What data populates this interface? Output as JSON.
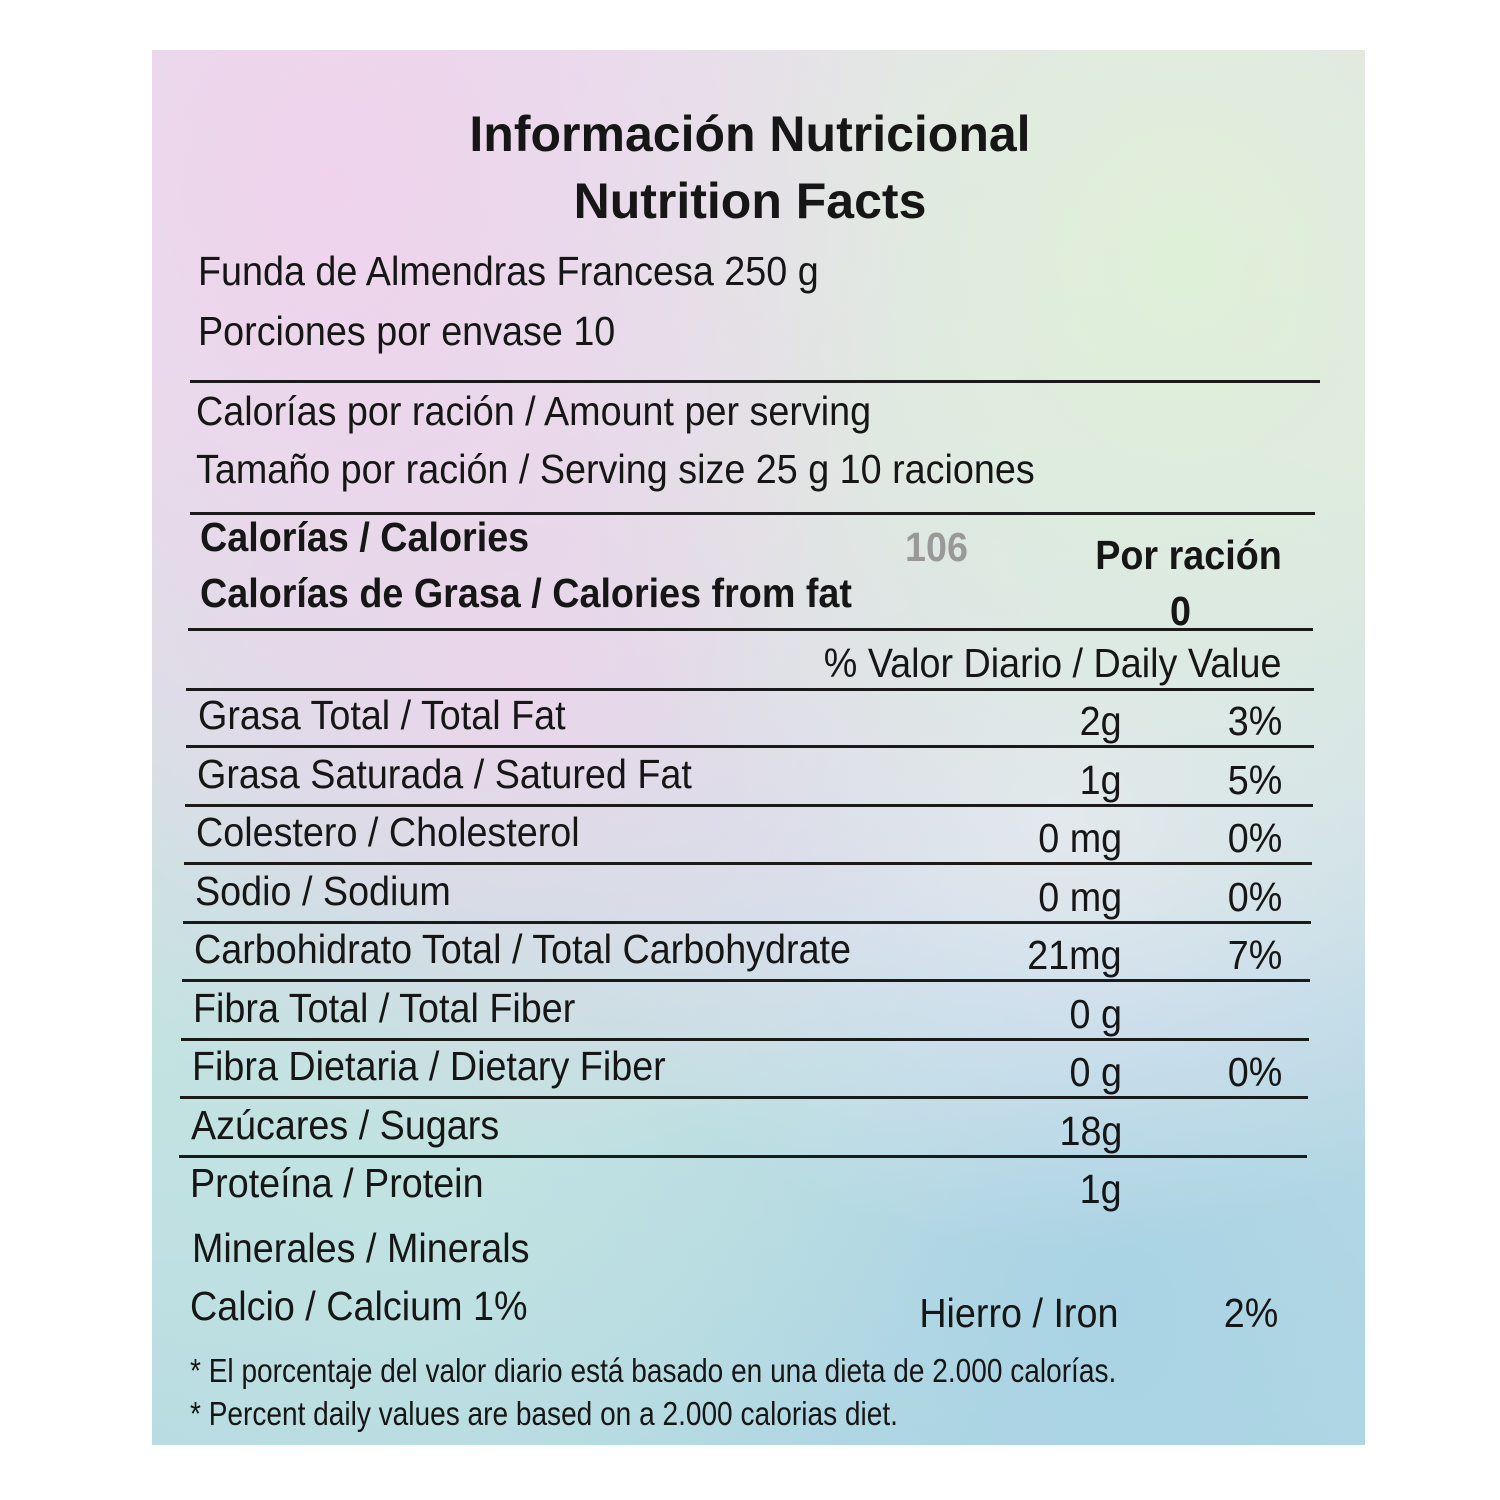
{
  "title_es": "Información Nutricional",
  "title_en": "Nutrition Facts",
  "product": "Funda de Almendras Francesa 250 g",
  "servings": "Porciones por envase 10",
  "amount_per_serving": "Calorías por ración / Amount per serving",
  "serving_size": "Tamaño por ración / Serving size 25 g 10 raciones",
  "calories": {
    "label": "Calorías / Calories",
    "value": "106",
    "per": "Por ración"
  },
  "calories_fat": {
    "label": "Calorías de Grasa / Calories from fat",
    "value": "0"
  },
  "daily_value_header": "% Valor Diario / Daily Value",
  "nutrients": [
    {
      "label": "Grasa Total / Total Fat",
      "amount": "2g",
      "dv": "3%"
    },
    {
      "label": "Grasa Saturada / Satured Fat",
      "amount": "1g",
      "dv": "5%"
    },
    {
      "label": "Colestero / Cholesterol",
      "amount": "0 mg",
      "dv": "0%"
    },
    {
      "label": "Sodio / Sodium",
      "amount": "0 mg",
      "dv": "0%"
    },
    {
      "label": "Carbohidrato Total / Total Carbohydrate",
      "amount": "21mg",
      "dv": "7%"
    },
    {
      "label": "Fibra Total / Total Fiber",
      "amount": "0 g",
      "dv": ""
    },
    {
      "label": "Fibra Dietaria / Dietary Fiber",
      "amount": "0 g",
      "dv": "0%"
    },
    {
      "label": "Azúcares / Sugars",
      "amount": "18g",
      "dv": ""
    },
    {
      "label": "Proteína / Protein",
      "amount": "1g",
      "dv": ""
    }
  ],
  "minerals": "Minerales / Minerals",
  "calcium": "Calcio / Calcium 1%",
  "iron": {
    "label": "Hierro / Iron",
    "dv": "2%"
  },
  "footnote_es": "* El porcentaje del valor diario está basado en una dieta de 2.000 calorías.",
  "footnote_en": "* Percent daily values are based on a 2.000 calorias diet."
}
